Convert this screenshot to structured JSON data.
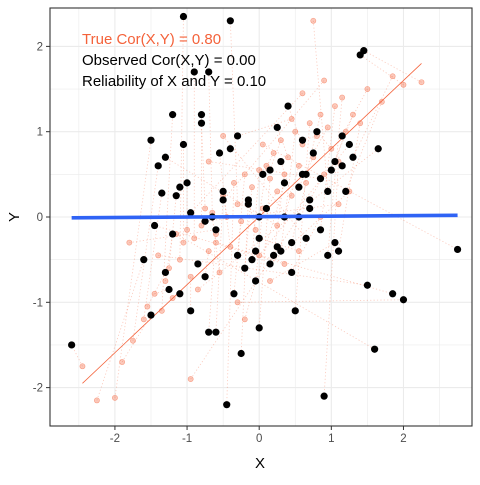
{
  "chart_data": {
    "type": "scatter",
    "title": "",
    "xlabel": "X",
    "ylabel": "Y",
    "xlim": [
      -2.9,
      2.95
    ],
    "ylim": [
      -2.45,
      2.45
    ],
    "x_ticks": [
      -2,
      -1,
      0,
      1,
      2
    ],
    "y_ticks": [
      -2,
      -1,
      0,
      1,
      2
    ],
    "x_tick_labels": [
      "-2",
      "-1",
      "0",
      "1",
      "2"
    ],
    "y_tick_labels": [
      "-2",
      "-1",
      "0",
      "1",
      "2"
    ],
    "grid": true,
    "annotations": [
      {
        "text": "True Cor(X,Y) =  0.80",
        "color": "#F4623A"
      },
      {
        "text": "Observed Cor(X,Y) = 0.00",
        "color": "#000000"
      },
      {
        "text": "Reliability of X and Y = 0.10",
        "color": "#000000"
      }
    ],
    "true_points": {
      "color": "#F4623A",
      "x": [
        -2.45,
        -2.25,
        -2.0,
        -1.9,
        -1.75,
        -1.6,
        -1.55,
        -1.45,
        -1.35,
        -1.3,
        -1.25,
        -1.2,
        -1.1,
        -1.05,
        -1.0,
        -0.95,
        -0.9,
        -0.85,
        -0.8,
        -0.75,
        -0.7,
        -0.65,
        -0.6,
        -0.55,
        -0.5,
        -0.45,
        -0.4,
        -0.35,
        -0.3,
        -0.25,
        -0.2,
        -0.15,
        -0.1,
        -0.05,
        0.0,
        0.05,
        0.1,
        0.15,
        0.2,
        0.25,
        0.3,
        0.35,
        0.4,
        0.45,
        0.5,
        0.55,
        0.6,
        0.65,
        0.7,
        0.75,
        0.8,
        0.85,
        0.9,
        0.95,
        1.0,
        1.05,
        1.1,
        1.15,
        1.2,
        1.3,
        1.4,
        1.5,
        1.7,
        1.85,
        2.0,
        2.25,
        -1.4,
        -1.15,
        -0.85,
        -0.6,
        -0.3,
        0.05,
        0.35,
        0.6,
        0.9,
        1.25,
        -0.5,
        0.15,
        0.45,
        -0.2,
        0.75,
        1.1,
        -0.95,
        0.25,
        0.55,
        -1.8,
        -0.7,
        0.0,
        0.85
      ],
      "y": [
        -1.75,
        -2.15,
        -2.12,
        -1.7,
        -1.45,
        -1.2,
        -1.05,
        -0.9,
        -1.1,
        -0.75,
        -0.6,
        -0.95,
        -0.5,
        -0.3,
        -0.15,
        -0.7,
        -0.25,
        -0.55,
        -0.1,
        0.1,
        -0.4,
        0.05,
        -0.2,
        -0.65,
        0.25,
        0.0,
        -0.35,
        0.4,
        0.15,
        -0.05,
        0.5,
        0.2,
        0.35,
        -0.15,
        0.55,
        0.1,
        0.6,
        0.45,
        0.75,
        0.3,
        0.9,
        0.5,
        0.7,
        0.25,
        1.0,
        0.6,
        0.85,
        0.4,
        1.1,
        0.7,
        0.95,
        1.2,
        0.5,
        1.05,
        0.8,
        1.3,
        0.65,
        1.4,
        1.0,
        1.2,
        1.1,
        1.5,
        1.35,
        1.65,
        1.55,
        1.58,
        -0.45,
        -0.2,
        -0.85,
        -0.3,
        -1.0,
        0.85,
        -0.55,
        1.45,
        1.6,
        0.3,
        0.95,
        -0.75,
        1.15,
        -1.2,
        2.3,
        0.15,
        -1.9,
        -0.1,
        -0.4,
        -0.3,
        0.65,
        -0.45,
        0.0
      ]
    },
    "observed_points": {
      "color": "#000000",
      "x": [
        -2.6,
        -1.6,
        -1.5,
        -1.5,
        -1.4,
        -1.35,
        -1.3,
        -1.25,
        -1.2,
        -1.2,
        -1.15,
        -1.1,
        -1.05,
        -1.05,
        -1.0,
        -0.95,
        -0.9,
        -0.85,
        -0.8,
        -0.8,
        -0.75,
        -0.7,
        -0.7,
        -0.65,
        -0.6,
        -0.55,
        -0.5,
        -0.45,
        -0.4,
        -0.35,
        -0.3,
        -0.25,
        -0.2,
        -0.15,
        -0.1,
        -0.05,
        0.0,
        0.0,
        0.05,
        0.1,
        0.15,
        0.2,
        0.25,
        0.3,
        0.3,
        0.35,
        0.4,
        0.45,
        0.5,
        0.55,
        0.6,
        0.65,
        0.7,
        0.75,
        0.8,
        0.85,
        0.9,
        0.95,
        1.0,
        1.05,
        1.1,
        1.15,
        1.2,
        1.3,
        1.4,
        1.45,
        1.5,
        1.6,
        1.65,
        1.85,
        2.0,
        2.75,
        -1.45,
        -0.95,
        -0.5,
        0.15,
        0.65,
        1.05,
        -0.3,
        0.35,
        0.95,
        -0.75,
        0.55,
        -1.3,
        0.0,
        -0.6,
        0.85,
        1.25,
        0.45,
        -0.15,
        0.7,
        -1.1,
        0.25,
        1.15,
        -0.4,
        -0.05,
        0.6
      ],
      "y": [
        -1.5,
        -0.5,
        0.9,
        -1.15,
        0.6,
        0.28,
        -0.65,
        -0.85,
        1.2,
        -0.2,
        0.25,
        -0.9,
        2.35,
        0.85,
        0.4,
        -1.1,
        1.7,
        -0.55,
        1.2,
        1.1,
        -0.7,
        1.7,
        -1.35,
        0.0,
        -1.35,
        0.75,
        0.3,
        -2.2,
        2.3,
        -0.9,
        -0.45,
        -1.6,
        -0.6,
        0.2,
        -0.5,
        -0.75,
        0.0,
        -1.3,
        0.5,
        0.1,
        0.55,
        -0.45,
        1.05,
        0.65,
        -0.4,
        0.0,
        1.3,
        -0.3,
        -1.1,
        0.35,
        0.9,
        0.5,
        0.2,
        0.75,
        1.0,
        -0.15,
        -2.1,
        -0.45,
        0.55,
        0.65,
        -0.4,
        0.95,
        0.3,
        0.7,
        1.9,
        1.95,
        -0.8,
        -1.55,
        0.8,
        -0.9,
        -0.97,
        -0.38,
        -0.1,
        0.05,
        0.2,
        -0.55,
        -0.25,
        -0.3,
        0.95,
        0.4,
        0.3,
        -0.05,
        0.0,
        0.7,
        -0.25,
        -0.15,
        0.45,
        0.85,
        -0.65,
        0.15,
        0.1,
        0.35,
        -0.35,
        0.6,
        0.8,
        -0.4,
        0.5
      ]
    },
    "true_fit_line": {
      "color": "#F4623A",
      "x": [
        -2.45,
        2.25
      ],
      "y": [
        -1.95,
        1.8
      ]
    },
    "observed_fit_line": {
      "color": "#2F63F5",
      "x": [
        -2.6,
        2.75
      ],
      "y": [
        -0.01,
        0.02
      ]
    }
  }
}
